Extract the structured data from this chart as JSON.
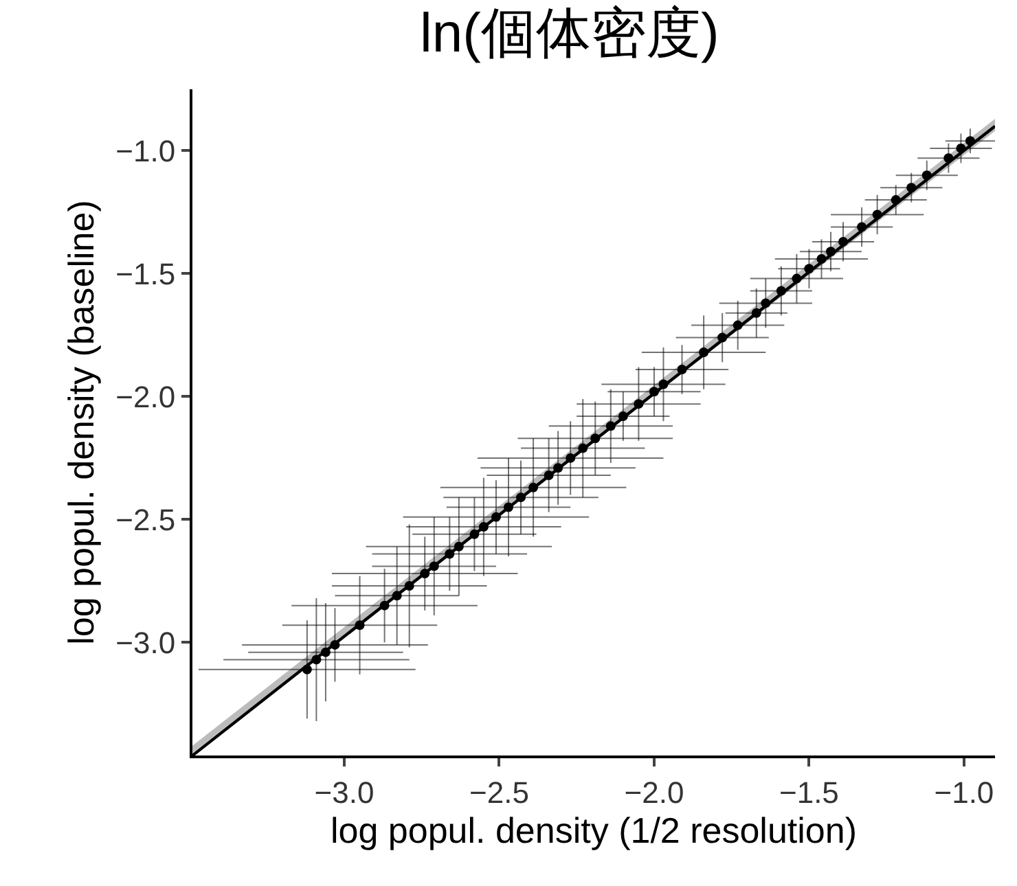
{
  "chart_data": {
    "type": "scatter",
    "title": "ln(個体密度)",
    "xlabel": "log popul. density (1/2 resolution)",
    "ylabel": "log popul. density (baseline)",
    "xlim": [
      -3.49,
      -0.9
    ],
    "ylim": [
      -3.46,
      -0.75
    ],
    "xticks": [
      {
        "value": -3.0,
        "label": "−3.0"
      },
      {
        "value": -2.5,
        "label": "−2.5"
      },
      {
        "value": -2.0,
        "label": "−2.0"
      },
      {
        "value": -1.5,
        "label": "−1.5"
      },
      {
        "value": -1.0,
        "label": "−1.0"
      }
    ],
    "yticks": [
      {
        "value": -3.0,
        "label": "−3.0"
      },
      {
        "value": -2.5,
        "label": "−2.5"
      },
      {
        "value": -2.0,
        "label": "−2.0"
      },
      {
        "value": -1.5,
        "label": "−1.5"
      },
      {
        "value": -1.0,
        "label": "−1.0"
      }
    ],
    "series": [
      {
        "color": "#000000",
        "marker": "circle",
        "x": [
          -3.12,
          -3.09,
          -3.06,
          -3.03,
          -2.95,
          -2.87,
          -2.83,
          -2.79,
          -2.74,
          -2.71,
          -2.66,
          -2.63,
          -2.58,
          -2.55,
          -2.51,
          -2.47,
          -2.43,
          -2.39,
          -2.34,
          -2.31,
          -2.27,
          -2.23,
          -2.19,
          -2.14,
          -2.1,
          -2.05,
          -2.0,
          -1.97,
          -1.91,
          -1.84,
          -1.78,
          -1.73,
          -1.67,
          -1.64,
          -1.59,
          -1.54,
          -1.5,
          -1.46,
          -1.43,
          -1.39,
          -1.33,
          -1.28,
          -1.22,
          -1.17,
          -1.12,
          -1.05,
          -1.01,
          -0.98
        ],
        "values": [
          -3.11,
          -3.07,
          -3.04,
          -3.01,
          -2.93,
          -2.85,
          -2.81,
          -2.77,
          -2.72,
          -2.69,
          -2.64,
          -2.61,
          -2.56,
          -2.53,
          -2.49,
          -2.45,
          -2.41,
          -2.37,
          -2.32,
          -2.29,
          -2.25,
          -2.21,
          -2.17,
          -2.12,
          -2.08,
          -2.03,
          -1.98,
          -1.95,
          -1.89,
          -1.82,
          -1.76,
          -1.71,
          -1.66,
          -1.62,
          -1.57,
          -1.52,
          -1.48,
          -1.44,
          -1.41,
          -1.37,
          -1.31,
          -1.26,
          -1.2,
          -1.15,
          -1.1,
          -1.03,
          -0.99,
          -0.96
        ],
        "xerrors": [
          0.35,
          0.3,
          0.25,
          0.3,
          0.25,
          0.3,
          0.2,
          0.25,
          0.3,
          0.2,
          0.25,
          0.3,
          0.2,
          0.25,
          0.3,
          0.2,
          0.25,
          0.3,
          0.2,
          0.25,
          0.3,
          0.2,
          0.25,
          0.2,
          0.15,
          0.2,
          0.15,
          0.2,
          0.15,
          0.2,
          0.15,
          0.15,
          0.1,
          0.15,
          0.1,
          0.15,
          0.1,
          0.15,
          0.1,
          0.1,
          0.1,
          0.15,
          0.1,
          0.1,
          0.1,
          0.1,
          0.1,
          0.08
        ],
        "errors": [
          0.2,
          0.25,
          0.2,
          0.15,
          0.2,
          0.15,
          0.2,
          0.25,
          0.15,
          0.2,
          0.15,
          0.2,
          0.15,
          0.2,
          0.15,
          0.2,
          0.15,
          0.2,
          0.15,
          0.15,
          0.15,
          0.2,
          0.15,
          0.15,
          0.1,
          0.15,
          0.1,
          0.15,
          0.1,
          0.15,
          0.1,
          0.1,
          0.1,
          0.1,
          0.1,
          0.1,
          0.08,
          0.08,
          0.08,
          0.08,
          0.08,
          0.08,
          0.06,
          0.06,
          0.06,
          0.06,
          0.06,
          0.05
        ]
      },
      {
        "type": "line",
        "color": "#000000",
        "x": [
          -3.49,
          -0.9
        ],
        "values": [
          -3.46,
          -0.9
        ],
        "lower": [
          -3.45,
          -0.92
        ],
        "upper": [
          -3.42,
          -0.87
        ],
        "line_style": "solid",
        "marker": "none"
      }
    ]
  }
}
